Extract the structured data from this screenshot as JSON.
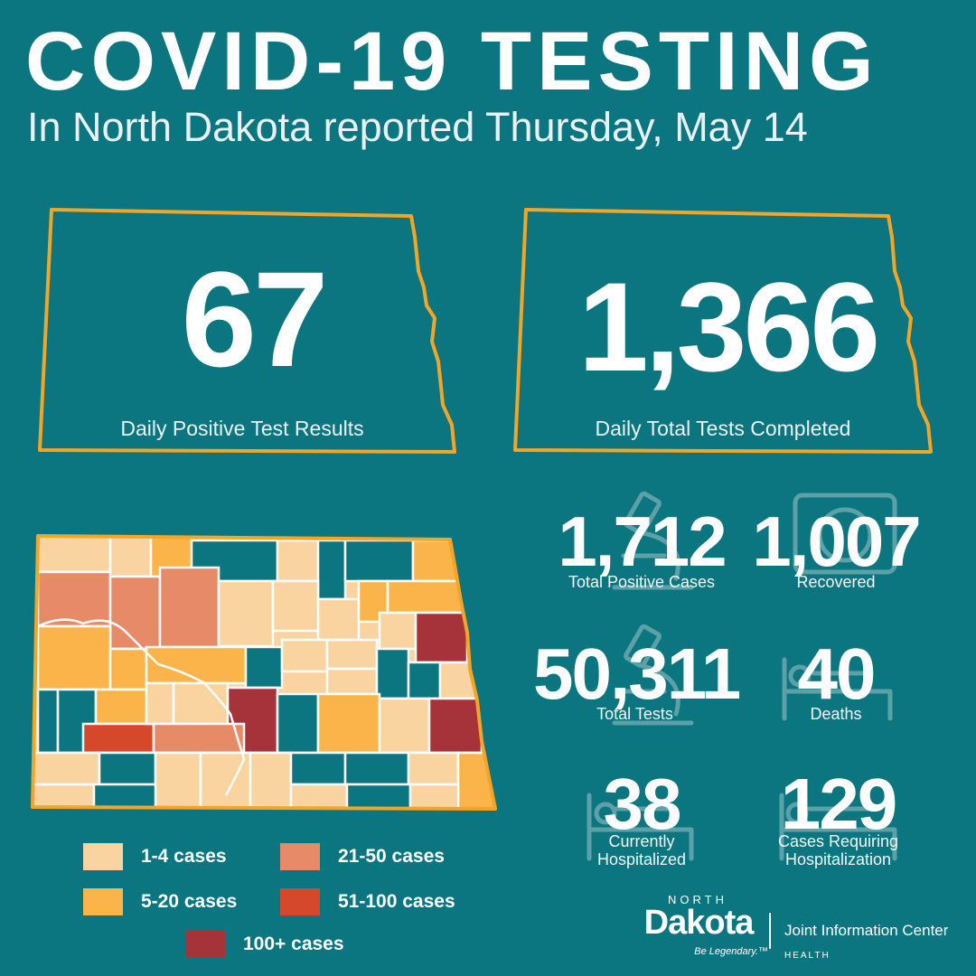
{
  "header": {
    "title": "COVID-19 TESTING",
    "subtitle": "In North Dakota reported Thursday, May 14"
  },
  "daily_boxes": [
    {
      "value": "67",
      "label": "Daily Positive Test Results"
    },
    {
      "value": "1,366",
      "label": "Daily Total Tests Completed"
    }
  ],
  "stats": {
    "total_positive": {
      "value": "1,712",
      "label": "Total Positive Cases",
      "icon": "microscope-icon"
    },
    "recovered": {
      "value": "1,007",
      "label": "Recovered",
      "icon": "recovered-icon"
    },
    "total_tests": {
      "value": "50,311",
      "label": "Total Tests",
      "icon": "microscope-icon"
    },
    "deaths": {
      "value": "40",
      "label": "Deaths",
      "icon": "hospital-bed-icon"
    },
    "hospitalized": {
      "value": "38",
      "line1": "Currently",
      "line2": "Hospitalized",
      "icon": "hospital-bed-icon"
    },
    "cases_hosp": {
      "value": "129",
      "line1": "Cases Requiring",
      "line2": "Hospitalization",
      "icon": "hospital-bed-icon"
    }
  },
  "legend": [
    {
      "label": "1-4 cases",
      "color": "#f9d3a0"
    },
    {
      "label": "5-20 cases",
      "color": "#fbb44a"
    },
    {
      "label": "21-50 cases",
      "color": "#e68a68"
    },
    {
      "label": "51-100 cases",
      "color": "#d6482a"
    },
    {
      "label": "100+ cases",
      "color": "#a6323a"
    }
  ],
  "colors": {
    "background": "#0b7580",
    "outline": "#f2a526",
    "no_cases": "#0b7580"
  },
  "logo": {
    "top": "NORTH",
    "main": "Dakota",
    "tagline": "Be Legendary.™",
    "right": "Joint Information Center",
    "sub": "HEALTH"
  }
}
